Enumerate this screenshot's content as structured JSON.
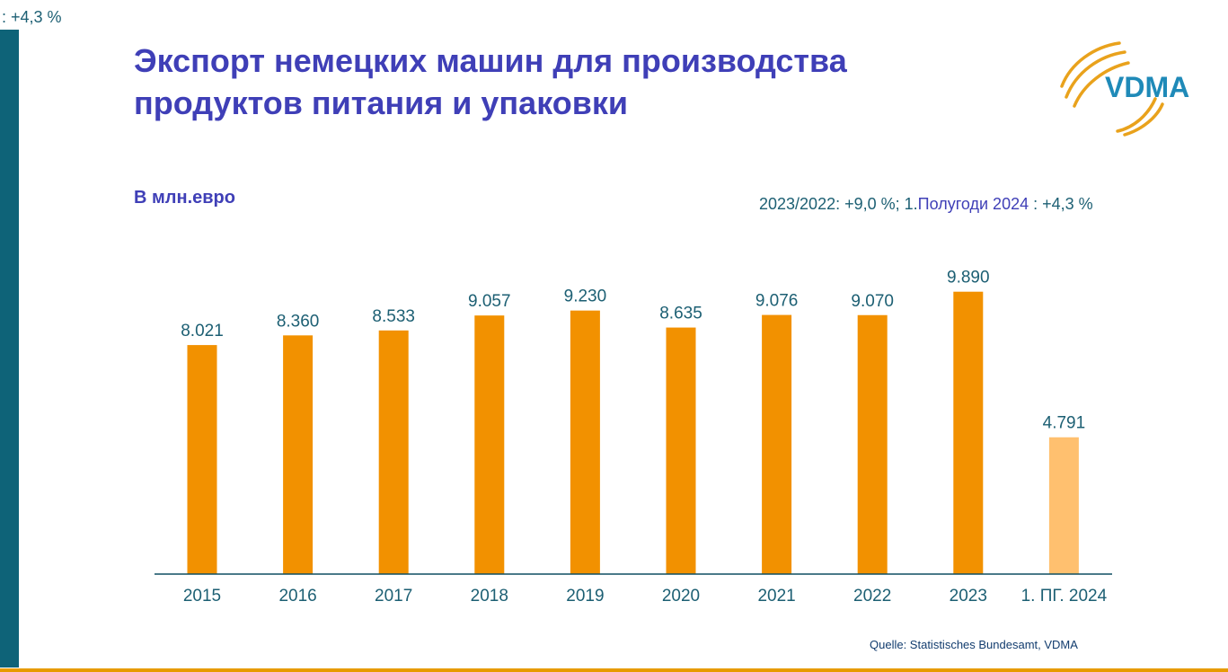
{
  "header": {
    "corner_note": ": +4,3 %",
    "title_line1": "Экспорт немецких машин для производства",
    "title_line2": "продуктов питания и упаковки",
    "unit_label": "В млн.евро",
    "growth_part1": "2023/2022: +9,0 %; 1.",
    "growth_part2": "Полугоди 2024",
    "growth_part3": " : +4,3 %"
  },
  "logo": {
    "text": "VDMA",
    "icon": "vdma-arcs-logo"
  },
  "source": "Quelle: Statistisches Bundesamt, VDMA",
  "colors": {
    "bar": "#f29100",
    "bar_partial": "#ffc06f",
    "title": "#3f3fb7",
    "text": "#1c5f73",
    "axis": "#0e4f62",
    "side_bar": "#0e6378"
  },
  "chart_data": {
    "type": "bar",
    "categories": [
      "2015",
      "2016",
      "2017",
      "2018",
      "2019",
      "2020",
      "2021",
      "2022",
      "2023",
      "1. ПГ. 2024"
    ],
    "values": [
      8021,
      8360,
      8533,
      9057,
      9230,
      8635,
      9076,
      9070,
      9890,
      4791
    ],
    "value_labels": [
      "8.021",
      "8.360",
      "8.533",
      "9.057",
      "9.230",
      "8.635",
      "9.076",
      "9.070",
      "9.890",
      "4.791"
    ],
    "highlight": [
      false,
      false,
      false,
      false,
      false,
      false,
      false,
      false,
      false,
      true
    ],
    "ylim": [
      0,
      10000
    ],
    "grid": false,
    "legend": "none",
    "xlabel": "",
    "ylabel": ""
  }
}
